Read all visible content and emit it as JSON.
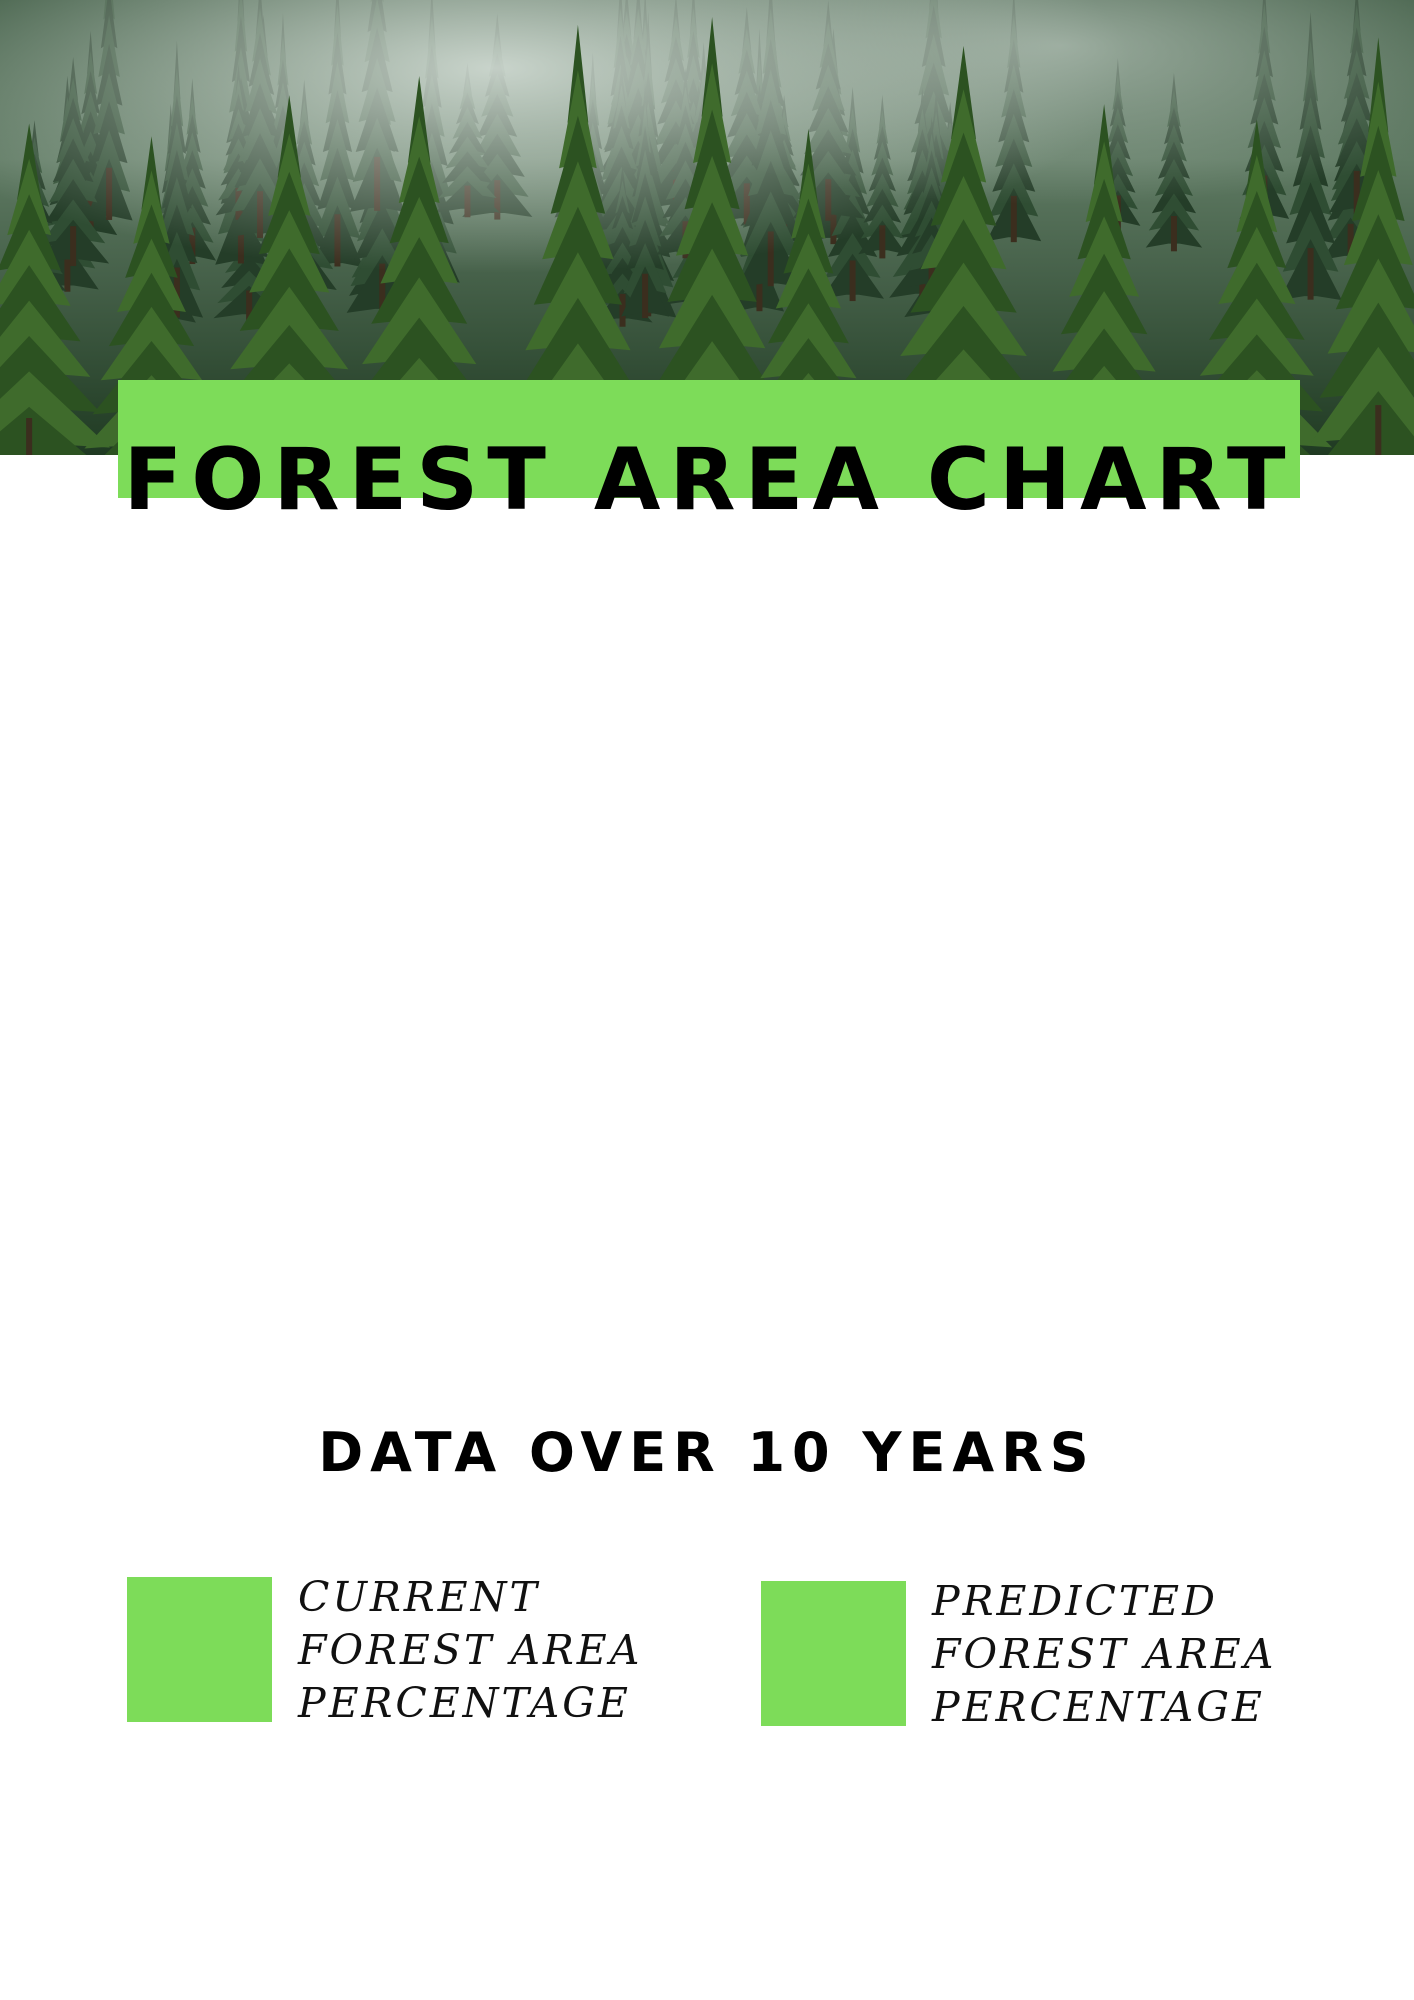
{
  "title": "FOREST AREA CHART",
  "subtitle": "DATA OVER 10 YEARS",
  "colors": {
    "accent": "#7ddc59",
    "text": "#000000",
    "background": "#ffffff"
  },
  "header_image": {
    "icon": "forest-photo-icon"
  },
  "chart_data": {
    "type": "bar",
    "title": "FOREST AREA CHART",
    "subtitle": "DATA OVER 10 YEARS",
    "categories": [],
    "series": [
      {
        "name": "CURRENT FOREST AREA PERCENTAGE",
        "color": "#7ddc59",
        "values": []
      },
      {
        "name": "PREDICTED FOREST AREA PERCENTAGE",
        "color": "#7ddc59",
        "values": []
      }
    ],
    "legend_position": "bottom"
  },
  "legend": {
    "current": {
      "lines": [
        "CURRENT",
        "FOREST AREA",
        "PERCENTAGE"
      ],
      "color": "#7ddc59"
    },
    "predicted": {
      "lines": [
        "PREDICTED",
        "FOREST AREA",
        "PERCENTAGE"
      ],
      "color": "#7ddc59"
    }
  }
}
